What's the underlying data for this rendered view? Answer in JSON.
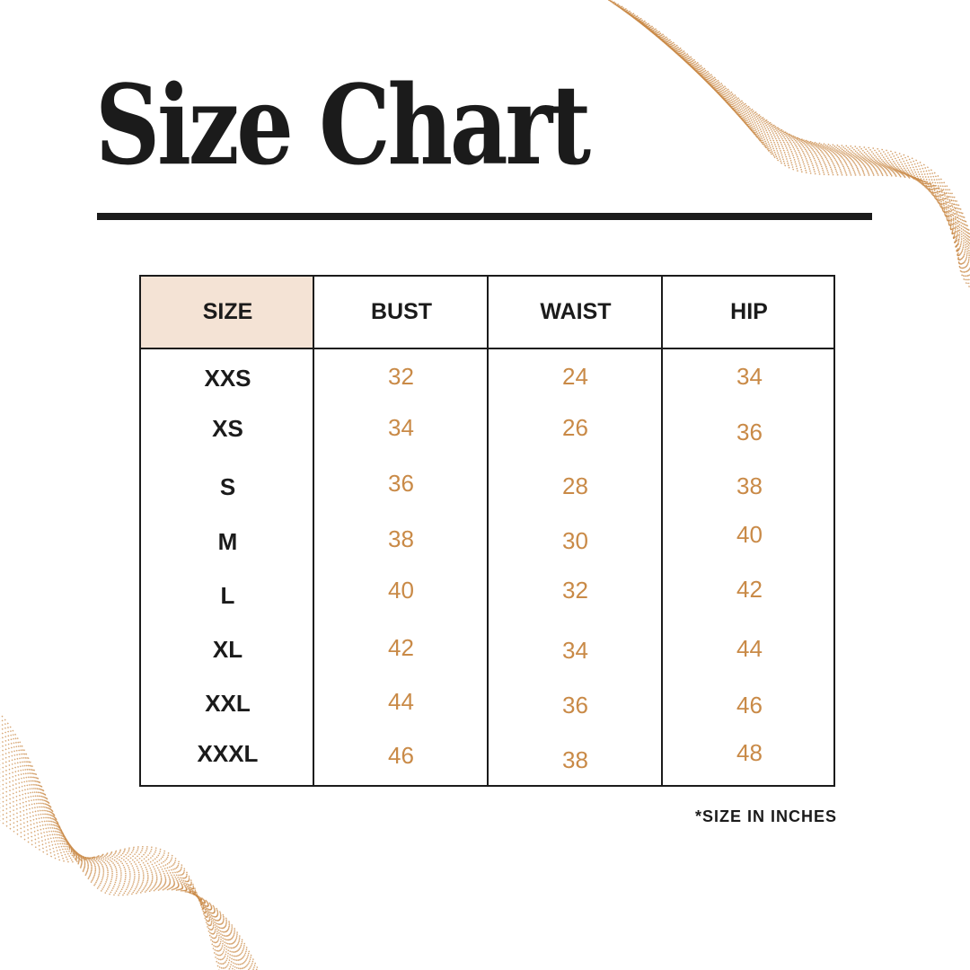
{
  "title": "Size Chart",
  "accent_color": "#c98a47",
  "header_highlight_color": "#f4e3d5",
  "table": {
    "headers": [
      "SIZE",
      "BUST",
      "WAIST",
      "HIP"
    ],
    "rows": [
      {
        "size": "XXS",
        "bust": "32",
        "waist": "24",
        "hip": "34"
      },
      {
        "size": "XS",
        "bust": "34",
        "waist": "26",
        "hip": "36"
      },
      {
        "size": "S",
        "bust": "36",
        "waist": "28",
        "hip": "38"
      },
      {
        "size": "M",
        "bust": "38",
        "waist": "30",
        "hip": "40"
      },
      {
        "size": "L",
        "bust": "40",
        "waist": "32",
        "hip": "42"
      },
      {
        "size": "XL",
        "bust": "42",
        "waist": "34",
        "hip": "44"
      },
      {
        "size": "XXL",
        "bust": "44",
        "waist": "36",
        "hip": "46"
      },
      {
        "size": "XXXL",
        "bust": "46",
        "waist": "38",
        "hip": "48"
      }
    ]
  },
  "note": "*SIZE IN INCHES"
}
